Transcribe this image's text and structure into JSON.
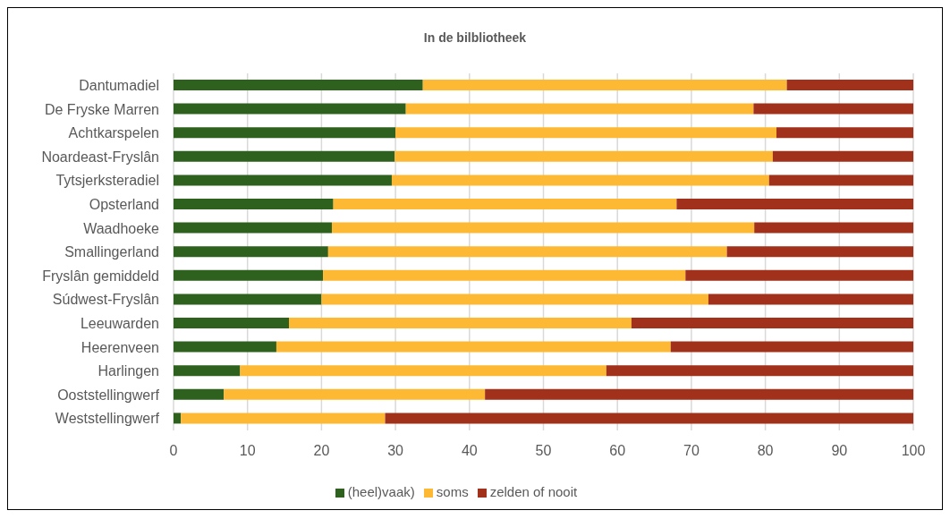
{
  "chart_data": {
    "type": "bar",
    "title": "In de bilbliotheek",
    "orientation": "horizontal",
    "stacked": true,
    "categories": [
      "Dantumadiel",
      "De Fryske Marren",
      "Achtkarspelen",
      "Noardeast-Fryslân",
      "Tytsjerksteradiel",
      "Opsterland",
      "Waadhoeke",
      "Smallingerland",
      "Fryslân gemiddeld",
      "Súdwest-Fryslân",
      "Leeuwarden",
      "Heerenveen",
      "Harlingen",
      "Ooststellingwerf",
      "Weststellingwerf"
    ],
    "series": [
      {
        "name": "(heel)vaak)",
        "color": "#2e611e",
        "values": [
          33.7,
          31.4,
          30.0,
          29.9,
          29.5,
          21.6,
          21.4,
          20.9,
          20.2,
          20.0,
          15.6,
          13.9,
          9.0,
          6.8,
          1.0
        ]
      },
      {
        "name": "soms",
        "color": "#fdb933",
        "values": [
          49.2,
          47.0,
          51.5,
          51.1,
          51.0,
          46.4,
          57.1,
          53.9,
          49.0,
          52.3,
          46.3,
          53.3,
          49.5,
          35.3,
          27.6
        ]
      },
      {
        "name": "zelden of nooit",
        "color": "#a1311b",
        "values": [
          17.1,
          21.6,
          18.5,
          19.0,
          19.5,
          32.0,
          21.5,
          25.2,
          30.8,
          27.7,
          38.1,
          32.8,
          41.5,
          57.9,
          71.4
        ]
      }
    ],
    "xlim": [
      0,
      100
    ],
    "xticks": [
      0,
      10,
      20,
      30,
      40,
      50,
      60,
      70,
      80,
      90,
      100
    ],
    "grid": "x",
    "legend": "bottom"
  }
}
